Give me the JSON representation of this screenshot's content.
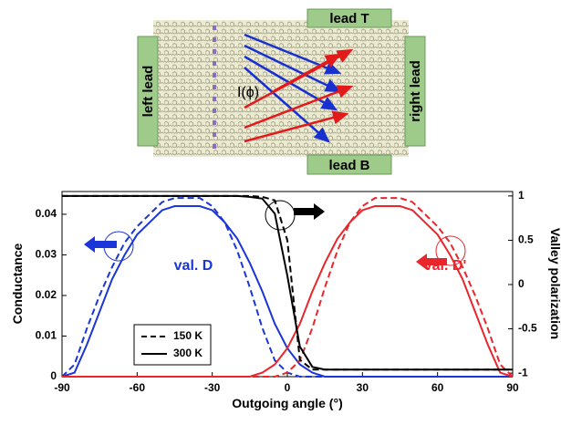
{
  "schematic": {
    "lead_top": "lead T",
    "lead_bottom": "lead B",
    "lead_left": "left lead",
    "lead_right": "right lead",
    "current": "I(ϕ)"
  },
  "chart_data": {
    "type": "line",
    "x_label": "Outgoing angle (°)",
    "y_label": "Conductance",
    "y2_label": "Valley polarization",
    "annotations": [
      "val. D",
      "val. D'"
    ],
    "legend": [
      {
        "label": "150 K",
        "dashed": true
      },
      {
        "label": "300 K",
        "dashed": false
      }
    ],
    "x": [
      -90,
      -85,
      -80,
      -75,
      -70,
      -65,
      -60,
      -55,
      -50,
      -45,
      -40,
      -35,
      -30,
      -25,
      -20,
      -15,
      -10,
      -5,
      0,
      5,
      10,
      15,
      20,
      25,
      30,
      35,
      40,
      45,
      50,
      55,
      60,
      65,
      70,
      75,
      80,
      85,
      90
    ],
    "series": [
      {
        "color": "#1a35d8",
        "dashed": false,
        "values": [
          0,
          0.001,
          0.008,
          0.016,
          0.024,
          0.03,
          0.035,
          0.038,
          0.041,
          0.042,
          0.042,
          0.042,
          0.041,
          0.038,
          0.034,
          0.028,
          0.021,
          0.013,
          0.007,
          0.003,
          0.001,
          0,
          0,
          0,
          0,
          0,
          0,
          0,
          0,
          0,
          0,
          0,
          0,
          0,
          0,
          0,
          0
        ]
      },
      {
        "color": "#1a35d8",
        "dashed": true,
        "values": [
          0,
          0.003,
          0.012,
          0.02,
          0.027,
          0.033,
          0.037,
          0.04,
          0.043,
          0.044,
          0.044,
          0.044,
          0.042,
          0.038,
          0.031,
          0.022,
          0.012,
          0.004,
          0.001,
          0,
          0,
          0,
          0,
          0,
          0,
          0,
          0,
          0,
          0,
          0,
          0,
          0,
          0,
          0,
          0,
          0,
          0
        ]
      },
      {
        "color": "#e8262b",
        "dashed": false,
        "values": [
          0,
          0,
          0,
          0,
          0,
          0,
          0,
          0,
          0,
          0,
          0,
          0,
          0,
          0,
          0,
          0,
          0.001,
          0.003,
          0.007,
          0.013,
          0.021,
          0.028,
          0.034,
          0.038,
          0.041,
          0.042,
          0.042,
          0.042,
          0.041,
          0.038,
          0.035,
          0.03,
          0.024,
          0.016,
          0.008,
          0.001,
          0
        ]
      },
      {
        "color": "#e8262b",
        "dashed": true,
        "values": [
          0,
          0,
          0,
          0,
          0,
          0,
          0,
          0,
          0,
          0,
          0,
          0,
          0,
          0,
          0,
          0,
          0,
          0,
          0.001,
          0.004,
          0.012,
          0.022,
          0.031,
          0.038,
          0.042,
          0.044,
          0.044,
          0.044,
          0.043,
          0.04,
          0.037,
          0.033,
          0.027,
          0.02,
          0.012,
          0.003,
          0
        ]
      },
      {
        "color": "#000000",
        "dashed": false,
        "axis": "y2",
        "values": [
          1,
          1,
          1,
          1,
          1,
          1,
          1,
          1,
          1,
          1,
          1,
          1,
          1,
          1,
          1,
          0.99,
          0.97,
          0.8,
          0.1,
          -0.7,
          -0.93,
          -0.96,
          -0.96,
          -0.96,
          -0.96,
          -0.96,
          -0.96,
          -0.96,
          -0.96,
          -0.96,
          -0.96,
          -0.96,
          -0.96,
          -0.96,
          -0.96,
          -0.96,
          -0.96
        ]
      },
      {
        "color": "#000000",
        "dashed": true,
        "axis": "y2",
        "values": [
          1,
          1,
          1,
          1,
          1,
          1,
          1,
          1,
          1,
          1,
          1,
          1,
          1,
          1,
          1,
          1,
          0.99,
          0.95,
          0.5,
          -0.85,
          -0.96,
          -0.96,
          -0.96,
          -0.96,
          -0.96,
          -0.96,
          -0.96,
          -0.96,
          -0.96,
          -0.96,
          -0.96,
          -0.96,
          -0.96,
          -0.96,
          -0.96,
          -0.96,
          -0.96
        ]
      }
    ],
    "xlim": [
      -90,
      90
    ],
    "xticks": [
      -90,
      -60,
      -30,
      0,
      30,
      60,
      90
    ],
    "ylim": [
      0,
      0.0456
    ],
    "yticks": [
      0,
      0.01,
      0.02,
      0.03,
      0.04
    ],
    "y2lim": [
      -1.04,
      1.05
    ],
    "y2ticks": [
      -1,
      -0.5,
      0,
      0.5,
      1
    ]
  }
}
